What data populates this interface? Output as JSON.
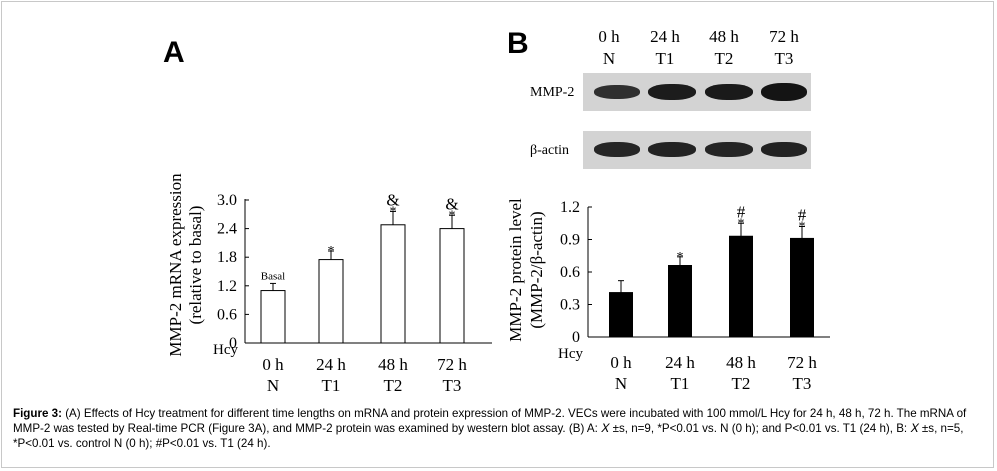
{
  "panel_labels": {
    "a": "A",
    "b": "B"
  },
  "chart_data": [
    {
      "type": "bar",
      "panel": "A",
      "ylabel": "MMP-2 mRNA expression",
      "ylabel2": "(relative to basal)",
      "x_axis_title": "Hcy",
      "categories": [
        "0 h",
        "24 h",
        "48 h",
        "72 h"
      ],
      "groups": [
        "N",
        "T1",
        "T2",
        "T3"
      ],
      "values": [
        1.1,
        1.75,
        2.48,
        2.4
      ],
      "errors": [
        0.15,
        0.18,
        0.28,
        0.28
      ],
      "annotations": [
        "Basal",
        "*",
        "*\n&",
        "*\n&"
      ],
      "ylim": [
        0,
        3.0
      ],
      "yticks": [
        "0",
        "0.6",
        "1.2",
        "1.8",
        "2.4",
        "3.0"
      ],
      "bar_color": "#ffffff"
    },
    {
      "type": "bar",
      "panel": "B",
      "ylabel": "MMP-2 protein level",
      "ylabel2": "(MMP-2/β-actin)",
      "x_axis_title": "Hcy",
      "categories": [
        "0 h",
        "24 h",
        "48 h",
        "72 h"
      ],
      "groups": [
        "N",
        "T1",
        "T2",
        "T3"
      ],
      "values": [
        0.41,
        0.66,
        0.93,
        0.91
      ],
      "errors": [
        0.11,
        0.08,
        0.12,
        0.11
      ],
      "annotations": [
        "",
        "*",
        "*\n#",
        "*\n#"
      ],
      "ylim": [
        0,
        1.2
      ],
      "yticks": [
        "0",
        "0.3",
        "0.6",
        "0.9",
        "1.2"
      ],
      "bar_color": "#000000"
    }
  ],
  "blot": {
    "headers": [
      {
        "time": "0 h",
        "group": "N"
      },
      {
        "time": "24 h",
        "group": "T1"
      },
      {
        "time": "48 h",
        "group": "T2"
      },
      {
        "time": "72 h",
        "group": "T3"
      }
    ],
    "rows": [
      "MMP-2",
      "β-actin"
    ]
  },
  "caption": {
    "label": "Figure 3:",
    "text": " (A) Effects of Hcy treatment for different time lengths on mRNA and protein expression of MMP-2. VECs were incubated with 100 mmol/L Hcy for 24 h, 48 h, 72 h. The mRNA of MMP-2 was tested by Real-time PCR (Figure 3A), and MMP-2 protein was examined by western blot assay. (B) A: 𝑋 ±s, n=9, *P<0.01 vs. N (0 h); and P<0.01 vs. T1 (24 h), B: 𝑋 ±s, n=5, *P<0.01 vs. control N (0 h); #P<0.01 vs. T1 (24 h)."
  }
}
